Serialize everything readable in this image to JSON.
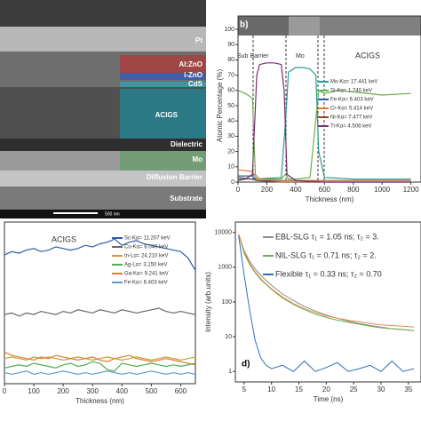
{
  "image_panel": {
    "labels": [
      "Pt",
      "Al:ZnO",
      "i-ZnO",
      "CdS",
      "ACIGS",
      "Dielectric",
      "Mo",
      "Diffusion Barrier",
      "Substrate"
    ],
    "scale_bar": "500 nm"
  },
  "chart_data": [
    {
      "type": "line",
      "panel_label": "b)",
      "xlabel": "Thickness (nm)",
      "ylabel": "Atomic Percentage (%)",
      "annotations": [
        "Sub Barrier",
        "Mo",
        "ACIGS"
      ],
      "xlim": [
        0,
        1270
      ],
      "xticks": [
        0,
        200,
        400,
        600,
        800,
        1000,
        1200
      ],
      "ylim": [
        0,
        100
      ],
      "yticks": [
        0,
        10,
        20,
        30,
        40,
        50,
        60,
        70,
        80,
        90,
        100
      ],
      "series": [
        {
          "name": "Mo-Kα= 17.441 keV",
          "color": "#2a9d8f",
          "x": [
            0,
            100,
            300,
            330,
            350,
            400,
            450,
            500,
            540,
            560,
            600,
            800,
            1200
          ],
          "values": [
            2,
            2,
            3,
            40,
            72,
            75,
            75,
            74,
            70,
            20,
            3,
            2,
            2
          ]
        },
        {
          "name": "Si-Kα= 1.740 keV",
          "color": "#6ab04c",
          "x": [
            0,
            50,
            100,
            120,
            150,
            300,
            330,
            350,
            400,
            500,
            560,
            600,
            700,
            800,
            1000,
            1200
          ],
          "values": [
            60,
            58,
            55,
            5,
            2,
            2,
            5,
            2,
            2,
            3,
            60,
            58,
            60,
            59,
            57,
            58
          ]
        },
        {
          "name": "Fe-Kα= 6.403 keV",
          "color": "#2e5fa8",
          "x": [
            0,
            100,
            130,
            300,
            600,
            1200
          ],
          "values": [
            4,
            4,
            1,
            1,
            1,
            1
          ]
        },
        {
          "name": "Cr-Kα= 5.414 keV",
          "color": "#e07b39",
          "x": [
            0,
            100,
            130,
            300,
            600,
            1200
          ],
          "values": [
            8,
            7,
            2,
            1,
            1,
            1
          ]
        },
        {
          "name": "Ni-Kα= 7.477 keV",
          "color": "#8a4b2e",
          "x": [
            0,
            100,
            130,
            300,
            600,
            1200
          ],
          "values": [
            3,
            2,
            1,
            0,
            0,
            0
          ]
        },
        {
          "name": "Ti-Kα= 4.508 keV",
          "color": "#7b2d6e",
          "x": [
            0,
            50,
            100,
            130,
            150,
            200,
            250,
            300,
            320,
            340,
            400,
            600,
            800,
            1000,
            1200
          ],
          "values": [
            1,
            2,
            5,
            70,
            77,
            78,
            78,
            77,
            60,
            5,
            1,
            0,
            0,
            0,
            0
          ]
        }
      ]
    },
    {
      "type": "line",
      "title": "ACIGS",
      "xlabel": "Thickness (nm)",
      "xlim": [
        0,
        650
      ],
      "xticks": [
        0,
        100,
        200,
        300,
        400,
        500,
        600
      ],
      "ylim": [
        0,
        100
      ],
      "x": [
        0,
        25,
        50,
        75,
        100,
        125,
        150,
        175,
        200,
        225,
        250,
        275,
        300,
        325,
        350,
        375,
        400,
        425,
        450,
        475,
        500,
        525,
        550,
        575,
        600,
        625,
        650
      ],
      "series": [
        {
          "name": "Sc-Kα= 11.207 keV",
          "color": "#2e5fa8",
          "values": [
            82,
            84,
            83,
            85,
            86,
            84,
            85,
            87,
            86,
            85,
            86,
            88,
            87,
            89,
            90,
            92,
            88,
            90,
            91,
            89,
            88,
            87,
            86,
            85,
            84,
            80,
            72
          ]
        },
        {
          "name": "Cu-Kα= 8.040 keV",
          "color": "#666666",
          "values": [
            44,
            45,
            43,
            45,
            44,
            46,
            45,
            44,
            46,
            45,
            47,
            46,
            45,
            47,
            46,
            45,
            47,
            46,
            45,
            46,
            47,
            48,
            46,
            45,
            46,
            45,
            44
          ]
        },
        {
          "name": "In-Lα= 24.210 keV",
          "color": "#c9a227",
          "values": [
            16,
            17,
            16,
            15,
            17,
            16,
            17,
            16,
            15,
            16,
            17,
            16,
            15,
            16,
            17,
            16,
            15,
            16,
            17,
            16,
            15,
            16,
            17,
            16,
            15,
            16,
            17
          ]
        },
        {
          "name": "Ag-Lα= 3.150 keV",
          "color": "#4caf50",
          "values": [
            10,
            11,
            12,
            11,
            13,
            12,
            11,
            10,
            12,
            13,
            11,
            12,
            14,
            13,
            9,
            8,
            13,
            12,
            11,
            12,
            13,
            12,
            11,
            12,
            11,
            12,
            13
          ]
        },
        {
          "name": "Ga-Kα= 9.241 keV",
          "color": "#e07b39",
          "values": [
            20,
            18,
            17,
            16,
            15,
            17,
            16,
            18,
            17,
            16,
            15,
            16,
            17,
            15,
            14,
            16,
            17,
            18,
            16,
            15,
            14,
            15,
            16,
            15,
            14,
            13,
            12
          ]
        },
        {
          "name": "Fe-Kα= 6.403 keV",
          "color": "#5b9bd5",
          "values": [
            7,
            6,
            7,
            8,
            6,
            7,
            6,
            7,
            8,
            7,
            6,
            7,
            6,
            7,
            8,
            7,
            6,
            7,
            6,
            7,
            8,
            7,
            6,
            7,
            6,
            7,
            6
          ]
        }
      ]
    },
    {
      "type": "line",
      "panel_label": "d)",
      "xlabel": "Time (ns)",
      "ylabel": "Intensity (arb.units)",
      "log_y": true,
      "xlim": [
        3.4,
        37.3
      ],
      "xticks": [
        5,
        10,
        15,
        20,
        25,
        30,
        35
      ],
      "ylim": [
        0.5,
        20000
      ],
      "yticks": [
        1,
        10,
        100,
        1000,
        10000
      ],
      "x": [
        4,
        5,
        6,
        7,
        8,
        9,
        10,
        12,
        14,
        16,
        18,
        20,
        22,
        24,
        26,
        28,
        30,
        32,
        34,
        36
      ],
      "series": [
        {
          "name": "EBL-SLG τ₁ = 1.05 ns; τ₂ = 3.",
          "color": "#8c8c8c",
          "values": [
            9000,
            3000,
            1500,
            900,
            600,
            420,
            300,
            170,
            110,
            75,
            55,
            42,
            34,
            28,
            24,
            21,
            19,
            17,
            16,
            15
          ]
        },
        {
          "name": "NIL-SLG τ₁ = 0.71 ns; τ₂ = 2.",
          "color": "#6ab04c",
          "values": [
            9000,
            2500,
            1200,
            700,
            450,
            320,
            230,
            130,
            85,
            60,
            45,
            36,
            30,
            26,
            23,
            20,
            18,
            17,
            16,
            15
          ]
        },
        {
          "color": "#e58a4e",
          "values": [
            9000,
            2800,
            1300,
            750,
            480,
            330,
            240,
            140,
            90,
            65,
            50,
            40,
            34,
            30,
            27,
            24,
            22,
            21,
            20,
            19
          ]
        },
        {
          "name": "Flexible τ₁ = 0.33 ns; τ₂ = 0.70",
          "color": "#2e6fb8",
          "values": [
            8000,
            600,
            60,
            8,
            2.5,
            1.5,
            1.2,
            1.5,
            1,
            2,
            1,
            1.3,
            1.8,
            1,
            1.2,
            1.5,
            1,
            2,
            1,
            1.2
          ]
        }
      ]
    }
  ]
}
